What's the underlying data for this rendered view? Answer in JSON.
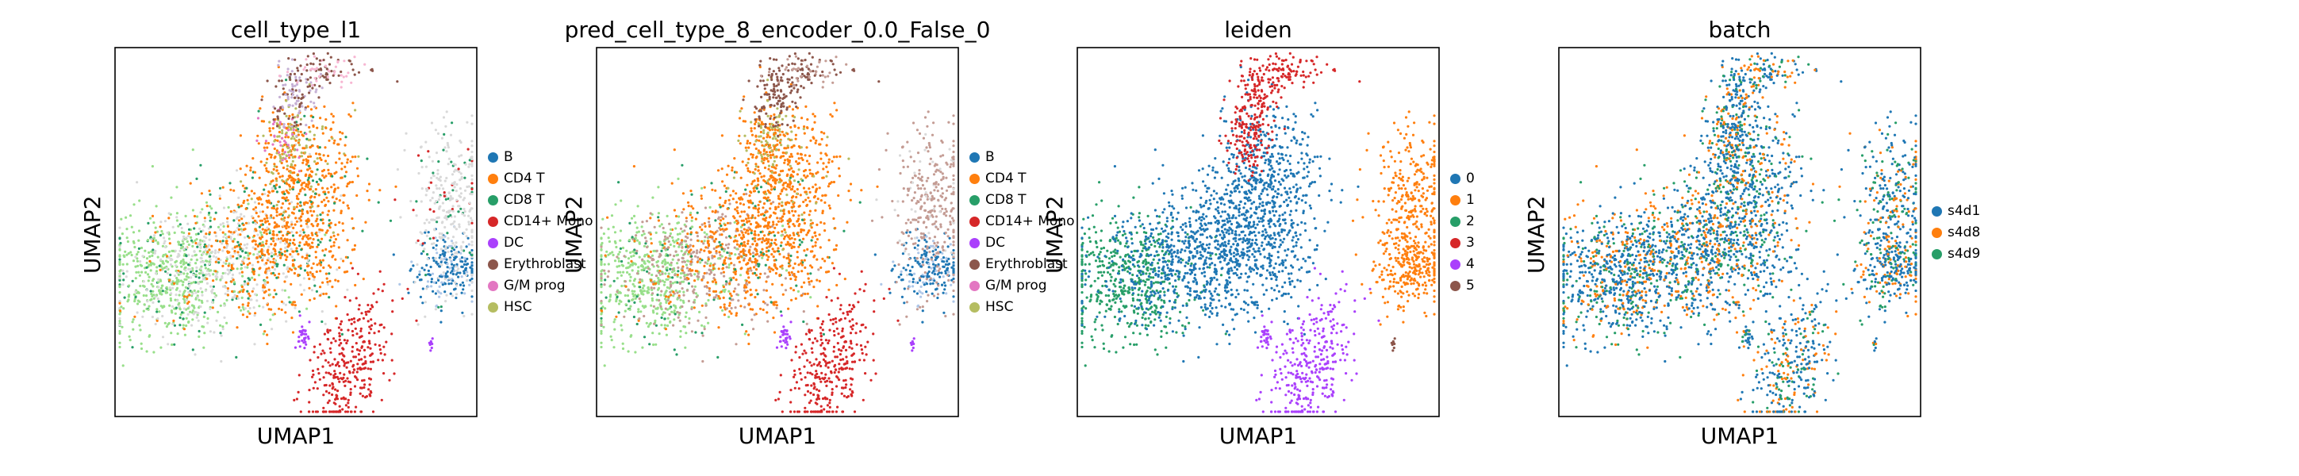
{
  "chart_data": [
    {
      "type": "scatter",
      "title": "cell_type_l1",
      "xlabel": "UMAP1",
      "ylabel": "UMAP2",
      "legend_placement": "right",
      "grid": false,
      "categories": [
        {
          "name": "B",
          "color": "#1f77b4"
        },
        {
          "name": "CD4 T",
          "color": "#ff7f0e"
        },
        {
          "name": "CD8 T",
          "color": "#279e68"
        },
        {
          "name": "CD14+ Mono",
          "color": "#d62728"
        },
        {
          "name": "DC",
          "color": "#aa40fc"
        },
        {
          "name": "Erythroblast",
          "color": "#8c564b"
        },
        {
          "name": "G/M prog",
          "color": "#e377c2"
        },
        {
          "name": "HSC",
          "color": "#b5bd61"
        }
      ]
    },
    {
      "type": "scatter",
      "title": "pred_cell_type_8_encoder_0.0_False_0",
      "xlabel": "UMAP1",
      "ylabel": "UMAP2",
      "legend_placement": "right",
      "grid": false,
      "categories": [
        {
          "name": "B",
          "color": "#1f77b4"
        },
        {
          "name": "CD4 T",
          "color": "#ff7f0e"
        },
        {
          "name": "CD8 T",
          "color": "#279e68"
        },
        {
          "name": "CD14+ Mono",
          "color": "#d62728"
        },
        {
          "name": "DC",
          "color": "#aa40fc"
        },
        {
          "name": "Erythroblast",
          "color": "#8c564b"
        },
        {
          "name": "G/M prog",
          "color": "#e377c2"
        },
        {
          "name": "HSC",
          "color": "#b5bd61"
        }
      ]
    },
    {
      "type": "scatter",
      "title": "leiden",
      "xlabel": "UMAP1",
      "ylabel": "UMAP2",
      "legend_placement": "right",
      "grid": false,
      "categories": [
        {
          "name": "0",
          "color": "#1f77b4"
        },
        {
          "name": "1",
          "color": "#ff7f0e"
        },
        {
          "name": "2",
          "color": "#279e68"
        },
        {
          "name": "3",
          "color": "#d62728"
        },
        {
          "name": "4",
          "color": "#aa40fc"
        },
        {
          "name": "5",
          "color": "#8c564b"
        }
      ]
    },
    {
      "type": "scatter",
      "title": "batch",
      "xlabel": "UMAP1",
      "ylabel": "UMAP2",
      "legend_placement": "right",
      "grid": false,
      "categories": [
        {
          "name": "s4d1",
          "color": "#1f77b4"
        },
        {
          "name": "s4d8",
          "color": "#ff7f0e"
        },
        {
          "name": "s4d9",
          "color": "#279e68"
        }
      ]
    }
  ]
}
